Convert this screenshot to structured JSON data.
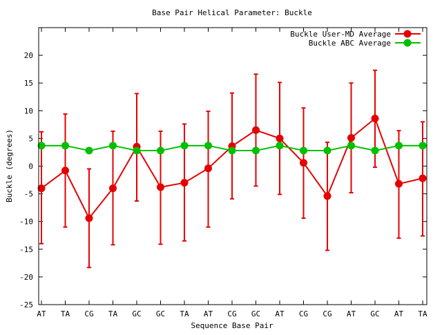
{
  "chart_data": {
    "type": "line",
    "title": "Base Pair Helical Parameter: Buckle",
    "xlabel": "Sequence Base Pair",
    "ylabel": "Buckle (degrees)",
    "categories": [
      "AT",
      "TA",
      "CG",
      "TA",
      "GC",
      "GC",
      "TA",
      "AT",
      "CG",
      "GC",
      "AT",
      "CG",
      "CG",
      "AT",
      "GC",
      "AT",
      "TA"
    ],
    "ylim": [
      -25,
      25
    ],
    "yticks": [
      -25,
      -20,
      -15,
      -10,
      -5,
      0,
      5,
      10,
      15,
      20
    ],
    "legend_position": "top-right",
    "grid": false,
    "series": [
      {
        "name": "Buckle User-MD Average",
        "color": "#e60000",
        "values": [
          -4.0,
          -0.8,
          -9.4,
          -4.0,
          3.5,
          -3.8,
          -3.0,
          -0.4,
          3.6,
          6.5,
          5.0,
          0.6,
          -5.4,
          5.1,
          8.6,
          -3.2,
          -2.2
        ],
        "err_upper": [
          6.2,
          9.4,
          -0.5,
          6.3,
          13.1,
          6.3,
          7.6,
          9.9,
          13.2,
          16.6,
          15.1,
          10.5,
          4.3,
          15.0,
          17.3,
          6.4,
          8.0
        ],
        "err_lower": [
          -14.0,
          -11.0,
          -18.3,
          -14.2,
          -6.3,
          -14.1,
          -13.5,
          -11.0,
          -5.9,
          -3.6,
          -5.1,
          -9.4,
          -15.2,
          -4.8,
          -0.2,
          -13.0,
          -12.6
        ]
      },
      {
        "name": "Buckle ABC Average",
        "color": "#00c000",
        "values": [
          3.7,
          3.7,
          2.8,
          3.7,
          2.8,
          2.8,
          3.7,
          3.7,
          2.8,
          2.8,
          3.7,
          2.8,
          2.8,
          3.7,
          2.8,
          3.7,
          3.7
        ]
      }
    ]
  }
}
